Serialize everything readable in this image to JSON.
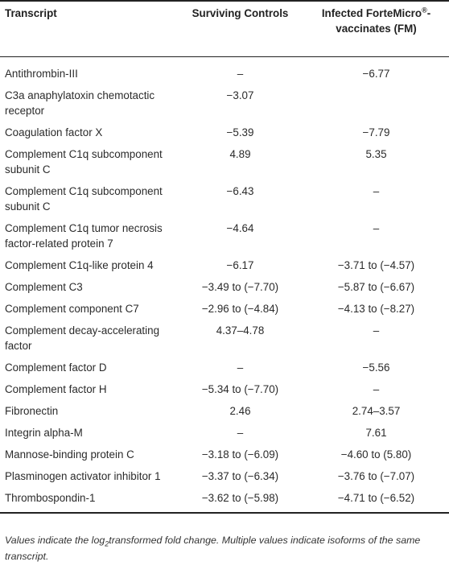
{
  "table": {
    "headers": {
      "transcript": "Transcript",
      "surviving": "Surviving Controls",
      "infected_prefix": "Infected ForteMicro",
      "infected_reg": "®",
      "infected_suffix": "-vaccinates (FM)"
    },
    "rows": [
      {
        "name": "Antithrombin-III",
        "surviving": "–",
        "infected": "−6.77"
      },
      {
        "name": "C3a anaphylatoxin chemotactic receptor",
        "surviving": "−3.07",
        "infected": ""
      },
      {
        "name": "Coagulation factor X",
        "surviving": "−5.39",
        "infected": "−7.79"
      },
      {
        "name": "Complement C1q subcomponent subunit C",
        "surviving": "4.89",
        "infected": "5.35"
      },
      {
        "name": "Complement C1q subcomponent subunit C",
        "surviving": "−6.43",
        "infected": "–"
      },
      {
        "name": "Complement C1q tumor necrosis factor-related protein 7",
        "surviving": "−4.64",
        "infected": "–"
      },
      {
        "name": "Complement C1q-like protein 4",
        "surviving": "−6.17",
        "infected": "−3.71 to (−4.57)"
      },
      {
        "name": "Complement C3",
        "surviving": "−3.49 to (−7.70)",
        "infected": "−5.87 to (−6.67)"
      },
      {
        "name": "Complement component C7",
        "surviving": "−2.96 to (−4.84)",
        "infected": "−4.13 to (−8.27)"
      },
      {
        "name": "Complement decay-accelerating factor",
        "surviving": "4.37–4.78",
        "infected": "–"
      },
      {
        "name": "Complement factor D",
        "surviving": "–",
        "infected": "−5.56"
      },
      {
        "name": "Complement factor H",
        "surviving": "−5.34 to (−7.70)",
        "infected": "–"
      },
      {
        "name": "Fibronectin",
        "surviving": "2.46",
        "infected": "2.74–3.57"
      },
      {
        "name": "Integrin alpha-M",
        "surviving": "–",
        "infected": "7.61"
      },
      {
        "name": "Mannose-binding protein C",
        "surviving": "−3.18 to (−6.09)",
        "infected": "−4.60 to (5.80)"
      },
      {
        "name": "Plasminogen activator inhibitor 1",
        "surviving": "−3.37 to (−6.34)",
        "infected": "−3.76 to (−7.07)"
      },
      {
        "name": "Thrombospondin-1",
        "surviving": "−3.62 to (−5.98)",
        "infected": "−4.71 to (−6.52)"
      }
    ]
  },
  "footnote": {
    "part1": "Values indicate the log",
    "sub": "2",
    "part2": "transformed fold change. Multiple values indicate isoforms of the same transcript."
  }
}
